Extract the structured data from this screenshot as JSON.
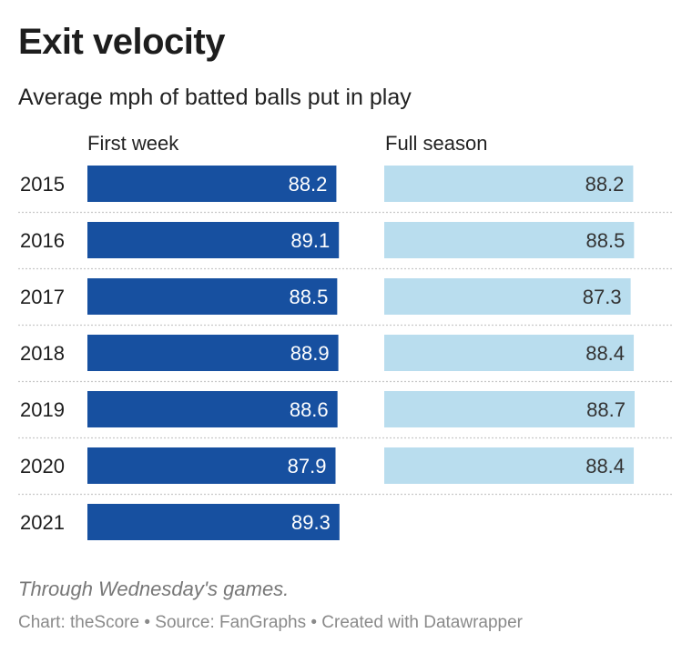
{
  "chart_data": {
    "type": "bar",
    "title": "Exit velocity",
    "subtitle": "Average mph of batted balls put in play",
    "categories": [
      "2015",
      "2016",
      "2017",
      "2018",
      "2019",
      "2020",
      "2021"
    ],
    "series": [
      {
        "name": "First week",
        "values": [
          88.2,
          89.1,
          88.5,
          88.9,
          88.6,
          87.9,
          89.3
        ],
        "color": "#1750a0"
      },
      {
        "name": "Full season",
        "values": [
          88.2,
          88.5,
          87.3,
          88.4,
          88.7,
          88.4,
          null
        ],
        "color": "#b9ddee"
      }
    ],
    "orientation": "horizontal",
    "grid": false
  },
  "notes": "Through Wednesday's games.",
  "credit": "Chart: theScore • Source: FanGraphs • Created with Datawrapper"
}
